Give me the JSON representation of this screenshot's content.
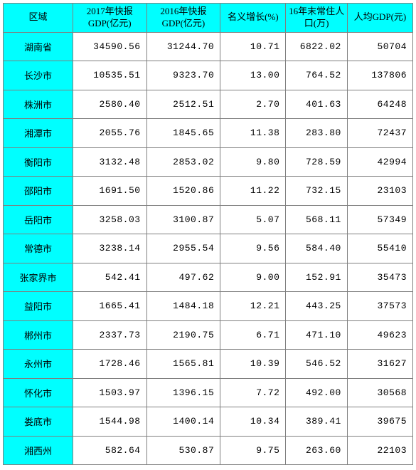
{
  "colors": {
    "highlight": "#00ffff",
    "border": "#7f7f7f",
    "background": "#ffffff",
    "text": "#000000"
  },
  "table": {
    "columns": [
      "区域",
      "2017年快报GDP(亿元)",
      "2016年快报GDP(亿元)",
      "名义增长(%)",
      "16年末常住人口(万)",
      "人均GDP(元)"
    ],
    "rows": [
      {
        "region": "湖南省",
        "gdp2017": "34590.56",
        "gdp2016": "31244.70",
        "growth": "10.71",
        "pop": "6822.02",
        "percap": "50704"
      },
      {
        "region": "长沙市",
        "gdp2017": "10535.51",
        "gdp2016": "9323.70",
        "growth": "13.00",
        "pop": "764.52",
        "percap": "137806"
      },
      {
        "region": "株洲市",
        "gdp2017": "2580.40",
        "gdp2016": "2512.51",
        "growth": "2.70",
        "pop": "401.63",
        "percap": "64248"
      },
      {
        "region": "湘潭市",
        "gdp2017": "2055.76",
        "gdp2016": "1845.65",
        "growth": "11.38",
        "pop": "283.80",
        "percap": "72437"
      },
      {
        "region": "衡阳市",
        "gdp2017": "3132.48",
        "gdp2016": "2853.02",
        "growth": "9.80",
        "pop": "728.59",
        "percap": "42994"
      },
      {
        "region": "邵阳市",
        "gdp2017": "1691.50",
        "gdp2016": "1520.86",
        "growth": "11.22",
        "pop": "732.15",
        "percap": "23103"
      },
      {
        "region": "岳阳市",
        "gdp2017": "3258.03",
        "gdp2016": "3100.87",
        "growth": "5.07",
        "pop": "568.11",
        "percap": "57349"
      },
      {
        "region": "常德市",
        "gdp2017": "3238.14",
        "gdp2016": "2955.54",
        "growth": "9.56",
        "pop": "584.40",
        "percap": "55410"
      },
      {
        "region": "张家界市",
        "gdp2017": "542.41",
        "gdp2016": "497.62",
        "growth": "9.00",
        "pop": "152.91",
        "percap": "35473"
      },
      {
        "region": "益阳市",
        "gdp2017": "1665.41",
        "gdp2016": "1484.18",
        "growth": "12.21",
        "pop": "443.25",
        "percap": "37573"
      },
      {
        "region": "郴州市",
        "gdp2017": "2337.73",
        "gdp2016": "2190.75",
        "growth": "6.71",
        "pop": "471.10",
        "percap": "49623"
      },
      {
        "region": "永州市",
        "gdp2017": "1728.46",
        "gdp2016": "1565.81",
        "growth": "10.39",
        "pop": "546.52",
        "percap": "31627"
      },
      {
        "region": "怀化市",
        "gdp2017": "1503.97",
        "gdp2016": "1396.15",
        "growth": "7.72",
        "pop": "492.00",
        "percap": "30568"
      },
      {
        "region": "娄底市",
        "gdp2017": "1544.98",
        "gdp2016": "1400.14",
        "growth": "10.34",
        "pop": "389.41",
        "percap": "39675"
      },
      {
        "region": "湘西州",
        "gdp2017": "582.64",
        "gdp2016": "530.87",
        "growth": "9.75",
        "pop": "263.60",
        "percap": "22103"
      }
    ]
  }
}
